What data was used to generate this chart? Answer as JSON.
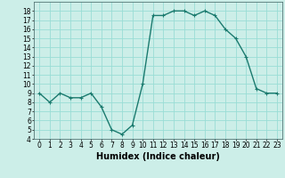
{
  "x": [
    0,
    1,
    2,
    3,
    4,
    5,
    6,
    7,
    8,
    9,
    10,
    11,
    12,
    13,
    14,
    15,
    16,
    17,
    18,
    19,
    20,
    21,
    22,
    23
  ],
  "y": [
    9,
    8,
    9,
    8.5,
    8.5,
    9,
    7.5,
    5,
    4.5,
    5.5,
    10,
    17.5,
    17.5,
    18,
    18,
    17.5,
    18,
    17.5,
    16,
    15,
    13,
    9.5,
    9,
    9
  ],
  "line_color": "#1a7a6e",
  "marker": "+",
  "marker_size": 3,
  "linewidth": 1.0,
  "xlabel": "Humidex (Indice chaleur)",
  "xlim": [
    -0.5,
    23.5
  ],
  "ylim": [
    4,
    19
  ],
  "yticks": [
    4,
    5,
    6,
    7,
    8,
    9,
    10,
    11,
    12,
    13,
    14,
    15,
    16,
    17,
    18
  ],
  "xticks": [
    0,
    1,
    2,
    3,
    4,
    5,
    6,
    7,
    8,
    9,
    10,
    11,
    12,
    13,
    14,
    15,
    16,
    17,
    18,
    19,
    20,
    21,
    22,
    23
  ],
  "bg_color": "#cceee8",
  "grid_color": "#99ddd5",
  "xlabel_fontsize": 7,
  "tick_fontsize": 5.5,
  "markeredgewidth": 0.8
}
